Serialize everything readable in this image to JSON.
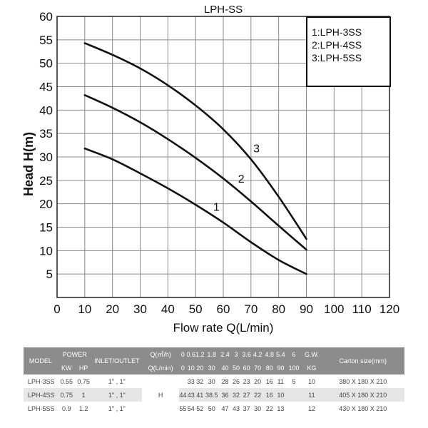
{
  "chart_data": {
    "type": "line",
    "title": "LPH-SS",
    "xlabel": "Flow rate Q(L/min)",
    "ylabel": "Head H(m)",
    "xlim": [
      0,
      120
    ],
    "ylim": [
      0,
      60
    ],
    "xticks": [
      0,
      10,
      20,
      30,
      40,
      50,
      60,
      70,
      80,
      90,
      100,
      110,
      120
    ],
    "yticks": [
      5,
      10,
      15,
      20,
      25,
      30,
      35,
      40,
      45,
      50,
      55,
      60
    ],
    "grid": true,
    "legend": {
      "position": "top-right",
      "entries": [
        "1:LPH-3SS",
        "2:LPH-4SS",
        "3:LPH-5SS"
      ]
    },
    "series": [
      {
        "label": "1",
        "x": [
          10,
          20,
          30,
          40,
          50,
          60,
          70,
          80,
          90
        ],
        "y": [
          31.8,
          29.5,
          26.5,
          23.3,
          19.8,
          16.0,
          11.8,
          8.0,
          5.0
        ]
      },
      {
        "label": "2",
        "x": [
          10,
          20,
          30,
          40,
          50,
          60,
          70,
          80,
          90
        ],
        "y": [
          43.2,
          40.5,
          37.4,
          33.8,
          29.8,
          25.4,
          20.5,
          15.3,
          10.2
        ]
      },
      {
        "label": "3",
        "x": [
          10,
          20,
          30,
          40,
          50,
          60,
          70,
          80,
          90
        ],
        "y": [
          54.3,
          51.8,
          48.9,
          45.3,
          41.0,
          35.9,
          29.5,
          21.5,
          12.5
        ]
      }
    ],
    "curve_labels": [
      {
        "text": "1",
        "x": 57.5,
        "y": 18.5
      },
      {
        "text": "2",
        "x": 66.5,
        "y": 24.5
      },
      {
        "text": "3",
        "x": 72,
        "y": 31
      }
    ]
  },
  "table": {
    "headers": {
      "model": "MODEL",
      "power": "POWER",
      "kw": "KW",
      "hp": "HP",
      "inlet": "INLET/OUTLET",
      "q_m3h": "Q(㎥/h)",
      "q_lmin": "Q(L/min)",
      "m3h_values": [
        "0",
        "0.6",
        "1.2",
        "1.8",
        "2.4",
        "3",
        "3.6",
        "4.2",
        "4.8",
        "5.4",
        "6"
      ],
      "lmin_values": [
        "0",
        "10",
        "20",
        "30",
        "40",
        "50",
        "60",
        "70",
        "80",
        "90",
        "100"
      ],
      "gw": "G.W.",
      "kg": "KG",
      "carton": "Carton size(mm)"
    },
    "h_label": "H",
    "rows": [
      {
        "model": "LPH-3SS",
        "kw": "0.55",
        "hp": "0.75",
        "inlet": "1\" , 1\"",
        "points": [
          "33",
          "32",
          "30",
          "28",
          "26",
          "23",
          "20",
          "16",
          "11",
          "5"
        ],
        "gw": "10",
        "carton": "380 X 180 X 210"
      },
      {
        "model": "LPH-4SS",
        "kw": "0.75",
        "hp": "1",
        "inlet": "1\" , 1\"",
        "points": [
          "44",
          "43",
          "41",
          "38.5",
          "36",
          "32",
          "27",
          "22",
          "16",
          "10"
        ],
        "gw": "11",
        "carton": "405 X 180 X 210"
      },
      {
        "model": "LPH-5SS",
        "kw": "0.9",
        "hp": "1.2",
        "inlet": "1\" , 1\"",
        "points": [
          "55",
          "54",
          "52",
          "50",
          "47",
          "43",
          "37",
          "30",
          "22",
          "13"
        ],
        "gw": "12",
        "carton": "430 X 180 X 210"
      }
    ]
  }
}
